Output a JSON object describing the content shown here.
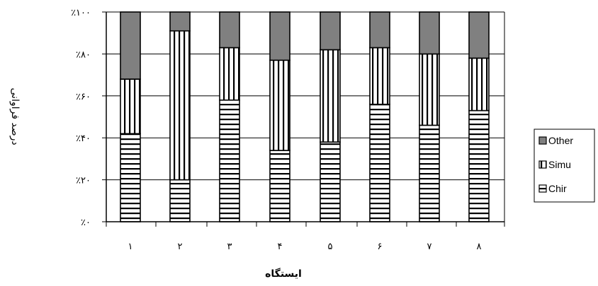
{
  "chart_data": {
    "type": "bar",
    "stacked": true,
    "percent": true,
    "categories": [
      "١",
      "٢",
      "٣",
      "۴",
      "۵",
      "۶",
      "٧",
      "٨"
    ],
    "series": [
      {
        "name": "Chir",
        "values": [
          42,
          20,
          58,
          34,
          38,
          56,
          46,
          53
        ],
        "pattern": "horizontal-stripes",
        "color": "#ffffff"
      },
      {
        "name": "Simu",
        "values": [
          26,
          71,
          25,
          43,
          44,
          27,
          34,
          25
        ],
        "pattern": "vertical-stripes",
        "color": "#ffffff"
      },
      {
        "name": "Other",
        "values": [
          32,
          9,
          17,
          23,
          18,
          17,
          20,
          22
        ],
        "pattern": "solid",
        "color": "#808080"
      }
    ],
    "y_ticks": [
      "٪۰",
      "٪۲۰",
      "٪۴۰",
      "٪۶۰",
      "٪۸۰",
      "٪۱۰۰"
    ],
    "ylim": [
      0,
      100
    ],
    "xlabel": "ایستگاه",
    "ylabel": "درصد فراوانی",
    "legend_position": "right",
    "grid": true
  }
}
